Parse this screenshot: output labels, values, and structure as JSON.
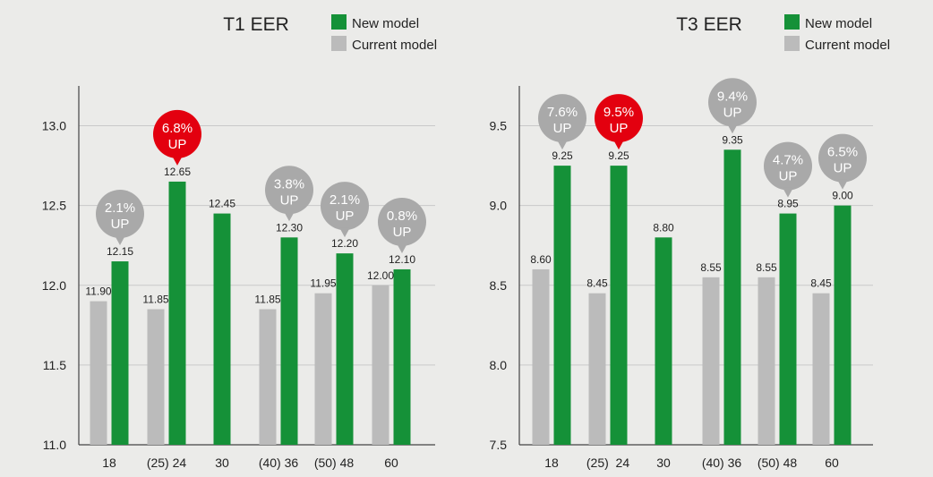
{
  "colors": {
    "new": "#159138",
    "current": "#bbbbbb",
    "bubble_gray": "#a9a9a9",
    "bubble_red": "#e3000f"
  },
  "chart_data": [
    {
      "type": "bar",
      "title": "T1 EER",
      "legend": [
        "New model",
        "Current model"
      ],
      "legend_position": "top-right",
      "ylim": [
        11.0,
        13.25
      ],
      "yticks": [
        "11.0",
        "11.5",
        "12.0",
        "12.5",
        "13.0"
      ],
      "grid": true,
      "categories": [
        "18",
        "(25) 24",
        "30",
        "(40) 36",
        "(50) 48",
        "60"
      ],
      "series": [
        {
          "name": "Current model",
          "values": [
            11.9,
            11.85,
            null,
            11.85,
            11.95,
            12.0
          ],
          "labels": [
            "11.90",
            "11.85",
            null,
            "11.85",
            "11.95",
            "12.00"
          ]
        },
        {
          "name": "New model",
          "values": [
            12.15,
            12.65,
            12.45,
            12.3,
            12.2,
            12.1
          ],
          "labels": [
            "12.15",
            "12.65",
            "12.45",
            "12.30",
            "12.20",
            "12.10"
          ]
        }
      ],
      "annotations": [
        {
          "pct": "2.1%",
          "word": "UP",
          "highlight": false
        },
        {
          "pct": "6.8%",
          "word": "UP",
          "highlight": true
        },
        null,
        {
          "pct": "3.8%",
          "word": "UP",
          "highlight": false
        },
        {
          "pct": "2.1%",
          "word": "UP",
          "highlight": false
        },
        {
          "pct": "0.8%",
          "word": "UP",
          "highlight": false
        }
      ]
    },
    {
      "type": "bar",
      "title": "T3 EER",
      "legend": [
        "New model",
        "Current model"
      ],
      "legend_position": "top-right",
      "ylim": [
        7.5,
        9.75
      ],
      "yticks": [
        "7.5",
        "8.0",
        "8.5",
        "9.0",
        "9.5"
      ],
      "grid": true,
      "categories": [
        "18",
        "(25)  24",
        "30",
        "(40) 36",
        "(50) 48",
        "60"
      ],
      "series": [
        {
          "name": "Current model",
          "values": [
            8.6,
            8.45,
            null,
            8.55,
            8.55,
            8.45
          ],
          "labels": [
            "8.60",
            "8.45",
            null,
            "8.55",
            "8.55",
            "8.45"
          ]
        },
        {
          "name": "New model",
          "values": [
            9.25,
            9.25,
            8.8,
            9.35,
            8.95,
            9.0
          ],
          "labels": [
            "9.25",
            "9.25",
            "8.80",
            "9.35",
            "8.95",
            "9.00"
          ]
        }
      ],
      "annotations": [
        {
          "pct": "7.6%",
          "word": "UP",
          "highlight": false
        },
        {
          "pct": "9.5%",
          "word": "UP",
          "highlight": true
        },
        null,
        {
          "pct": "9.4%",
          "word": "UP",
          "highlight": false
        },
        {
          "pct": "4.7%",
          "word": "UP",
          "highlight": false
        },
        {
          "pct": "6.5%",
          "word": "UP",
          "highlight": false
        }
      ]
    }
  ]
}
